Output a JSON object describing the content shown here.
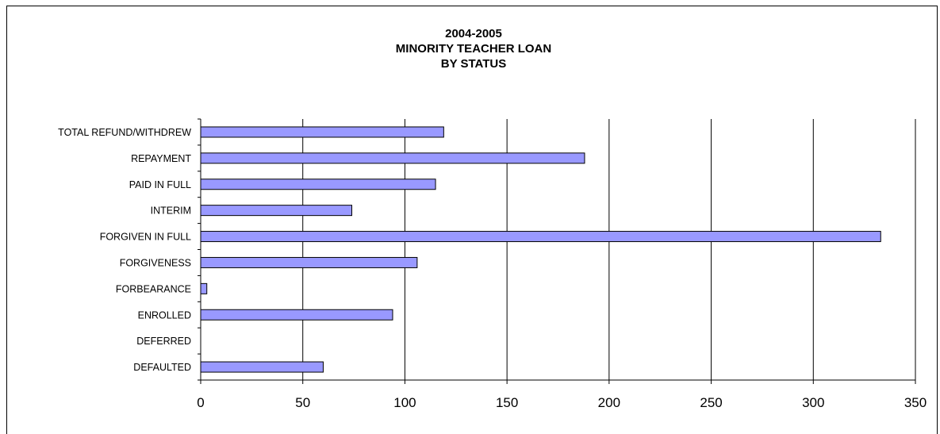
{
  "chart_data": {
    "type": "bar",
    "orientation": "horizontal",
    "title_lines": [
      "2004-2005",
      "MINORITY TEACHER LOAN",
      "BY STATUS"
    ],
    "categories": [
      "TOTAL REFUND/WITHDREW",
      "REPAYMENT",
      "PAID IN FULL",
      "INTERIM",
      "FORGIVEN IN FULL",
      "FORGIVENESS",
      "FORBEARANCE",
      "ENROLLED",
      "DEFERRED",
      "DEFAULTED"
    ],
    "values": [
      119,
      188,
      115,
      74,
      333,
      106,
      3,
      94,
      0,
      60
    ],
    "xlim": [
      0,
      350
    ],
    "xticks": [
      0,
      50,
      100,
      150,
      200,
      250,
      300,
      350
    ],
    "xlabel": "",
    "ylabel": "",
    "grid": "vertical",
    "legend": "none",
    "bar_color": "#9999ff",
    "bar_edge_color": "#000000"
  }
}
